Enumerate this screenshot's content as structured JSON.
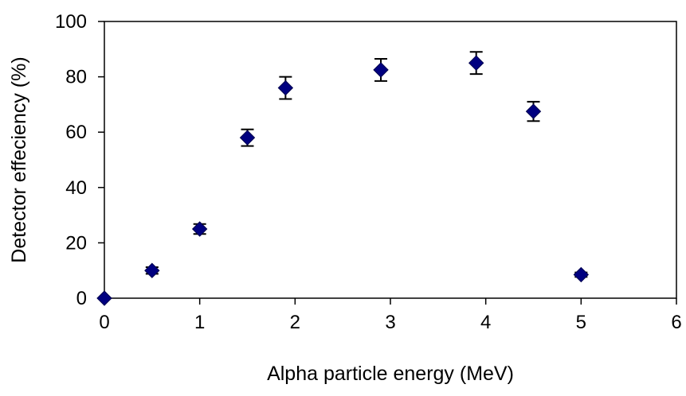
{
  "chart_data": {
    "type": "scatter",
    "title": "",
    "xlabel": "Alpha particle energy (MeV)",
    "ylabel": "Detector effeciency (%)",
    "xlim": [
      0,
      6
    ],
    "ylim": [
      0,
      100
    ],
    "xticks": [
      "0",
      "1",
      "2",
      "3",
      "4",
      "5",
      "6"
    ],
    "yticks": [
      "0",
      "20",
      "40",
      "60",
      "80",
      "100"
    ],
    "grid": false,
    "legend": "none",
    "marker": "diamond",
    "marker_color": "#000080",
    "error_bar_color": "#000000",
    "series": [
      {
        "points": [
          {
            "x": 0.0,
            "y": 0,
            "err": 0
          },
          {
            "x": 0.5,
            "y": 10,
            "err": 1.2
          },
          {
            "x": 1.0,
            "y": 25,
            "err": 1.8
          },
          {
            "x": 1.5,
            "y": 58,
            "err": 3
          },
          {
            "x": 1.9,
            "y": 76,
            "err": 4
          },
          {
            "x": 2.9,
            "y": 82.5,
            "err": 4
          },
          {
            "x": 3.9,
            "y": 85,
            "err": 4
          },
          {
            "x": 4.5,
            "y": 67.5,
            "err": 3.5
          },
          {
            "x": 5.0,
            "y": 8.5,
            "err": 0.8
          }
        ]
      }
    ]
  }
}
